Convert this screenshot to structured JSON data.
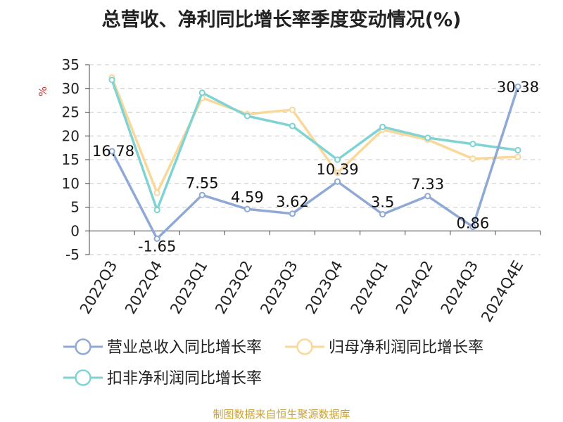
{
  "title": "总营收、净利同比增长率季度变动情况(%)",
  "source_note": "制图数据来自恒生聚源数据库",
  "chart_data": {
    "type": "line",
    "title": "总营收、净利同比增长率季度变动情况(%)",
    "ylabel": "%",
    "xlabel": "",
    "ylim": [
      -5,
      35
    ],
    "yticks": [
      -5,
      0,
      5,
      10,
      15,
      20,
      25,
      30,
      35
    ],
    "grid": true,
    "legend_position": "bottom",
    "categories": [
      "2022Q3",
      "2022Q4",
      "2023Q1",
      "2023Q2",
      "2023Q3",
      "2023Q4",
      "2024Q1",
      "2024Q2",
      "2024Q3",
      "2024Q4E"
    ],
    "series": [
      {
        "name": "营业总收入同比增长率",
        "color": "#8fa8d6",
        "values": [
          16.78,
          -1.65,
          7.55,
          4.59,
          3.62,
          10.39,
          3.5,
          7.33,
          0.86,
          30.38
        ],
        "labels": [
          "16.78",
          "-1.65",
          "7.55",
          "4.59",
          "3.62",
          "10.39",
          "3.5",
          "7.33",
          "0.86",
          "30.38"
        ]
      },
      {
        "name": "归母净利润同比增长率",
        "color": "#f9d89a",
        "values": [
          32.3,
          8.0,
          28.0,
          24.6,
          25.5,
          12.2,
          21.3,
          19.2,
          15.2,
          15.6
        ]
      },
      {
        "name": "扣非净利润同比增长率",
        "color": "#7fd3d3",
        "values": [
          31.8,
          4.4,
          29.1,
          24.2,
          22.1,
          15.0,
          21.9,
          19.6,
          18.3,
          17.0
        ]
      }
    ]
  }
}
